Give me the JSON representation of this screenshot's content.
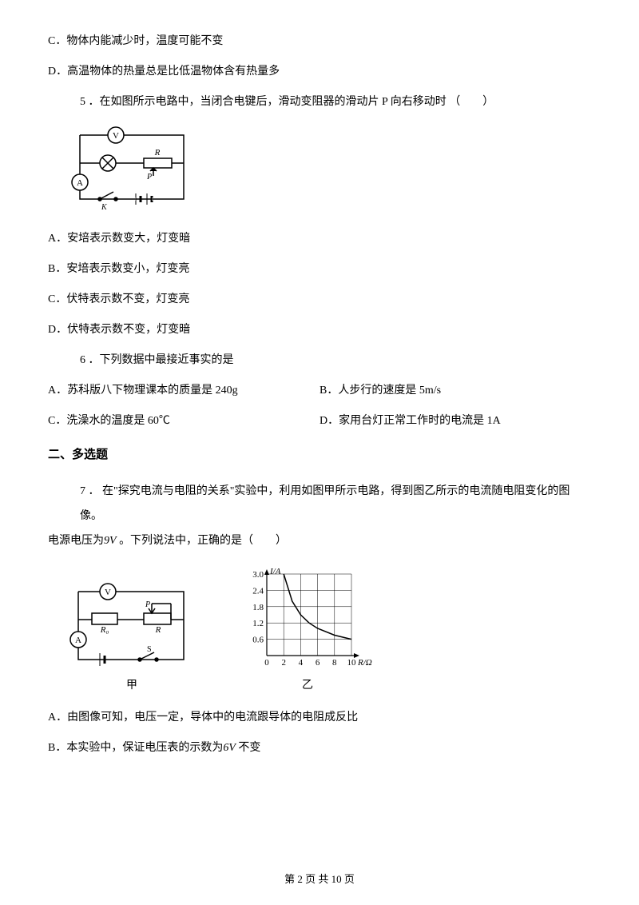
{
  "q4": {
    "optC": "C．物体内能减少时，温度可能不变",
    "optD": "D．高温物体的热量总是比低温物体含有热量多"
  },
  "q5": {
    "stem": "5 ．在如图所示电路中，当闭合电键后，滑动变阻器的滑动片 P 向右移动时 （　　）",
    "optA": "A．安培表示数变大，灯变暗",
    "optB": "B．安培表示数变小，灯变亮",
    "optC": "C．伏特表示数不变，灯变亮",
    "optD": "D．伏特表示数不变，灯变暗",
    "circuit": {
      "stroke": "#000000",
      "stroke_width": 1.5,
      "labels": {
        "V": "V",
        "A": "A",
        "R": "R",
        "P": "P",
        "K": "K"
      }
    }
  },
  "q6": {
    "stem": "6 ．下列数据中最接近事实的是",
    "optA": "A．苏科版八下物理课本的质量是 240g",
    "optB": "B．人步行的速度是 5m/s",
    "optC": "C．洗澡水的温度是 60℃",
    "optD": "D．家用台灯正常工作时的电流是 1A"
  },
  "section2_title": "二、多选题",
  "q7": {
    "stem_part1": "7 ．  在\"探究电流与电阻的关系\"实验中，利用如图甲所示电路，得到图乙所示的电流随电阻变化的图像。",
    "stem_part2_prefix": "电源电压为",
    "stem_part2_value": "9V",
    "stem_part2_suffix": " 。下列说法中，正确的是（　　）",
    "circuit": {
      "stroke": "#000000",
      "stroke_width": 1.5,
      "labels": {
        "V": "V",
        "A": "A",
        "R0": "R₀",
        "R": "R",
        "P": "P",
        "S": "S"
      },
      "caption": "甲"
    },
    "chart": {
      "type": "line",
      "caption": "乙",
      "xlabel": "R/Ω",
      "ylabel": "I/A",
      "xlim": [
        0,
        10
      ],
      "ylim": [
        0,
        3.0
      ],
      "xticks": [
        0,
        2,
        4,
        6,
        8,
        10
      ],
      "yticks": [
        0.6,
        1.2,
        1.8,
        2.4,
        3.0
      ],
      "xtick_labels": [
        "0",
        "2",
        "4",
        "6",
        "8",
        "10"
      ],
      "ytick_labels": [
        "0.6",
        "1.2",
        "1.8",
        "2.4",
        "3.0"
      ],
      "data": [
        {
          "x": 2,
          "y": 3.0
        },
        {
          "x": 3,
          "y": 2.0
        },
        {
          "x": 4,
          "y": 1.5
        },
        {
          "x": 5,
          "y": 1.2
        },
        {
          "x": 6,
          "y": 1.0
        },
        {
          "x": 8,
          "y": 0.75
        },
        {
          "x": 10,
          "y": 0.6
        }
      ],
      "line_color": "#000000",
      "line_width": 1.5,
      "grid_color": "#000000",
      "grid_width": 0.5,
      "background_color": "#ffffff",
      "label_fontsize": 11
    },
    "optA": "A．由图像可知，电压一定，导体中的电流跟导体的电阻成反比",
    "optB_prefix": "B．本实验中，保证电压表的示数为",
    "optB_value": "6V",
    "optB_suffix": " 不变"
  },
  "footer": "第 2 页 共 10 页"
}
